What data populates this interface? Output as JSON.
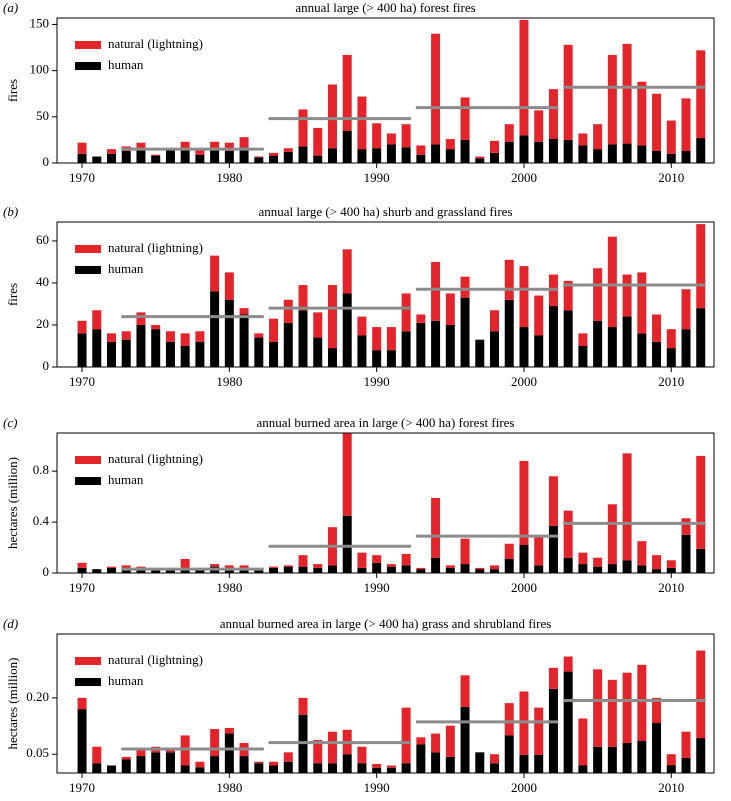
{
  "chart_data": [
    {
      "type": "bar",
      "stacked": true,
      "panel": "(a)",
      "title": "annual large (> 400 ha) forest fires",
      "ylabel": "fires",
      "x": [
        1970,
        1971,
        1972,
        1973,
        1974,
        1975,
        1976,
        1977,
        1978,
        1979,
        1980,
        1981,
        1982,
        1983,
        1984,
        1985,
        1986,
        1987,
        1988,
        1989,
        1990,
        1991,
        1992,
        1993,
        1994,
        1995,
        1996,
        1997,
        1998,
        1999,
        2000,
        2001,
        2002,
        2003,
        2004,
        2005,
        2006,
        2007,
        2008,
        2009,
        2010,
        2011,
        2012
      ],
      "series": [
        {
          "name": "human",
          "color": "#000000",
          "values": [
            10,
            7,
            10,
            13,
            15,
            8,
            14,
            15,
            9,
            14,
            13,
            17,
            6,
            8,
            12,
            18,
            8,
            16,
            35,
            15,
            16,
            20,
            17,
            9,
            20,
            15,
            25,
            5,
            11,
            23,
            30,
            23,
            26,
            25,
            19,
            15,
            20,
            21,
            19,
            13,
            10,
            13,
            27
          ]
        },
        {
          "name": "natural (lightning)",
          "color": "#e3242b",
          "values": [
            12,
            0,
            5,
            5,
            7,
            1,
            2,
            8,
            6,
            9,
            9,
            11,
            1,
            3,
            4,
            40,
            30,
            69,
            82,
            57,
            27,
            12,
            25,
            10,
            120,
            11,
            46,
            2,
            13,
            19,
            125,
            34,
            54,
            103,
            13,
            27,
            97,
            108,
            69,
            62,
            36,
            57,
            95
          ]
        }
      ],
      "means": [
        {
          "x": [
            1973,
            1982
          ],
          "value": 15
        },
        {
          "x": [
            1983,
            1992
          ],
          "value": 48
        },
        {
          "x": [
            1993,
            2002
          ],
          "value": 60
        },
        {
          "x": [
            2003,
            2012
          ],
          "value": 82
        }
      ],
      "mean_color": "#8c8c8c",
      "legend": "upper left",
      "xlim": [
        1968.3,
        2012.9
      ],
      "xticks": [
        1970,
        1980,
        1990,
        2000,
        2010
      ],
      "ylim": [
        0,
        157
      ],
      "yticks": [
        0,
        50,
        100,
        150
      ]
    },
    {
      "type": "bar",
      "stacked": true,
      "panel": "(b)",
      "title": "annual large (> 400 ha) shurb and grassland fires",
      "ylabel": "fires",
      "x": [
        1970,
        1971,
        1972,
        1973,
        1974,
        1975,
        1976,
        1977,
        1978,
        1979,
        1980,
        1981,
        1982,
        1983,
        1984,
        1985,
        1986,
        1987,
        1988,
        1989,
        1990,
        1991,
        1992,
        1993,
        1994,
        1995,
        1996,
        1997,
        1998,
        1999,
        2000,
        2001,
        2002,
        2003,
        2004,
        2005,
        2006,
        2007,
        2008,
        2009,
        2010,
        2011,
        2012
      ],
      "series": [
        {
          "name": "human",
          "color": "#000000",
          "values": [
            16,
            18,
            12,
            13,
            20,
            18,
            12,
            10,
            12,
            36,
            32,
            25,
            14,
            12,
            21,
            27,
            14,
            9,
            35,
            15,
            8,
            8,
            17,
            21,
            22,
            20,
            33,
            13,
            17,
            32,
            19,
            15,
            29,
            27,
            10,
            22,
            19,
            24,
            16,
            12,
            9,
            18,
            28
          ]
        },
        {
          "name": "natural (lightning)",
          "color": "#e3242b",
          "values": [
            6,
            9,
            4,
            4,
            6,
            2,
            5,
            6,
            5,
            17,
            13,
            3,
            2,
            11,
            11,
            12,
            12,
            30,
            21,
            9,
            11,
            11,
            18,
            4,
            28,
            15,
            10,
            0,
            10,
            19,
            29,
            19,
            15,
            14,
            6,
            25,
            43,
            20,
            29,
            13,
            9,
            19,
            40
          ]
        }
      ],
      "means": [
        {
          "x": [
            1973,
            1982
          ],
          "value": 24
        },
        {
          "x": [
            1983,
            1992
          ],
          "value": 28
        },
        {
          "x": [
            1993,
            2002
          ],
          "value": 37
        },
        {
          "x": [
            2003,
            2012
          ],
          "value": 39
        }
      ],
      "mean_color": "#8c8c8c",
      "legend": "upper left",
      "xlim": [
        1968.3,
        2012.9
      ],
      "xticks": [
        1970,
        1980,
        1990,
        2000,
        2010
      ],
      "ylim": [
        0,
        69
      ],
      "yticks": [
        0,
        20,
        40,
        60
      ]
    },
    {
      "type": "bar",
      "stacked": true,
      "panel": "(c)",
      "title": "annual burned area in large (> 400 ha) forest fires",
      "ylabel": "hectares (million)",
      "x": [
        1970,
        1971,
        1972,
        1973,
        1974,
        1975,
        1976,
        1977,
        1978,
        1979,
        1980,
        1981,
        1982,
        1983,
        1984,
        1985,
        1986,
        1987,
        1988,
        1989,
        1990,
        1991,
        1992,
        1993,
        1994,
        1995,
        1996,
        1997,
        1998,
        1999,
        2000,
        2001,
        2002,
        2003,
        2004,
        2005,
        2006,
        2007,
        2008,
        2009,
        2010,
        2011,
        2012
      ],
      "series": [
        {
          "name": "human",
          "color": "#000000",
          "values": [
            0.04,
            0.03,
            0.04,
            0.04,
            0.03,
            0.03,
            0.02,
            0.03,
            0.02,
            0.05,
            0.03,
            0.04,
            0.03,
            0.04,
            0.05,
            0.05,
            0.04,
            0.06,
            0.45,
            0.04,
            0.08,
            0.05,
            0.06,
            0.03,
            0.12,
            0.04,
            0.07,
            0.03,
            0.03,
            0.11,
            0.22,
            0.06,
            0.37,
            0.12,
            0.07,
            0.05,
            0.07,
            0.1,
            0.06,
            0.03,
            0.04,
            0.3,
            0.19
          ]
        },
        {
          "name": "natural (lightning)",
          "color": "#e3242b",
          "values": [
            0.04,
            0,
            0.01,
            0.02,
            0.02,
            0.01,
            0.02,
            0.08,
            0.02,
            0.02,
            0.03,
            0.02,
            0,
            0.01,
            0.01,
            0.09,
            0.03,
            0.3,
            0.65,
            0.12,
            0.06,
            0.02,
            0.09,
            0.01,
            0.47,
            0.02,
            0.2,
            0.01,
            0.03,
            0.12,
            0.66,
            0.22,
            0.39,
            0.37,
            0.09,
            0.07,
            0.47,
            0.84,
            0.19,
            0.11,
            0.06,
            0.13,
            0.73
          ]
        }
      ],
      "means": [
        {
          "x": [
            1973,
            1982
          ],
          "value": 0.03
        },
        {
          "x": [
            1983,
            1992
          ],
          "value": 0.21
        },
        {
          "x": [
            1993,
            2002
          ],
          "value": 0.29
        },
        {
          "x": [
            2003,
            2012
          ],
          "value": 0.39
        }
      ],
      "mean_color": "#8c8c8c",
      "legend": "upper left",
      "xlim": [
        1968.3,
        2012.9
      ],
      "xticks": [
        1970,
        1980,
        1990,
        2000,
        2010
      ],
      "ylim": [
        0,
        1.1
      ],
      "yticks": [
        0,
        0.4,
        0.8
      ]
    },
    {
      "type": "bar",
      "stacked": true,
      "panel": "(d)",
      "title": "annual burned area in large (> 400 ha) grass and shrubland fires",
      "ylabel": "hectares (million)",
      "x": [
        1970,
        1971,
        1972,
        1973,
        1974,
        1975,
        1976,
        1977,
        1978,
        1979,
        1980,
        1981,
        1982,
        1983,
        1984,
        1985,
        1986,
        1987,
        1988,
        1989,
        1990,
        1991,
        1992,
        1993,
        1994,
        1995,
        1996,
        1997,
        1998,
        1999,
        2000,
        2001,
        2002,
        2003,
        2004,
        2005,
        2006,
        2007,
        2008,
        2009,
        2010,
        2011,
        2012
      ],
      "series": [
        {
          "name": "human",
          "color": "#000000",
          "values": [
            0.17,
            0.026,
            0.02,
            0.036,
            0.045,
            0.055,
            0.055,
            0.02,
            0.015,
            0.045,
            0.105,
            0.045,
            0.026,
            0.02,
            0.03,
            0.155,
            0.026,
            0.026,
            0.05,
            0.026,
            0.014,
            0.014,
            0.026,
            0.076,
            0.055,
            0.043,
            0.176,
            0.055,
            0.026,
            0.1,
            0.048,
            0.048,
            0.224,
            0.27,
            0.02,
            0.07,
            0.07,
            0.08,
            0.086,
            0.133,
            0.021,
            0.04,
            0.093
          ]
        },
        {
          "name": "natural (lightning)",
          "color": "#e3242b",
          "values": [
            0.03,
            0.044,
            0,
            0.007,
            0.015,
            0.015,
            0.005,
            0.08,
            0.015,
            0.072,
            0.015,
            0.035,
            0.004,
            0.01,
            0.025,
            0.045,
            0.062,
            0.084,
            0.065,
            0.044,
            0.01,
            0.006,
            0.148,
            0.019,
            0.05,
            0.083,
            0.084,
            0,
            0.024,
            0.086,
            0.169,
            0.126,
            0.056,
            0.04,
            0.125,
            0.206,
            0.178,
            0.187,
            0.202,
            0.067,
            0.029,
            0.07,
            0.233
          ]
        }
      ],
      "means": [
        {
          "x": [
            1973,
            1982
          ],
          "value": 0.064
        },
        {
          "x": [
            1983,
            1992
          ],
          "value": 0.081
        },
        {
          "x": [
            1993,
            2002
          ],
          "value": 0.136
        },
        {
          "x": [
            2003,
            2012
          ],
          "value": 0.193
        }
      ],
      "mean_color": "#8c8c8c",
      "legend": "upper left",
      "xlim": [
        1968.3,
        2012.9
      ],
      "xticks": [
        1970,
        1980,
        1990,
        2000,
        2010
      ],
      "ylim": [
        0,
        0.37
      ],
      "yticks": [
        0.05,
        {
          "value": 0.2,
          "label": "0.20"
        }
      ]
    }
  ]
}
